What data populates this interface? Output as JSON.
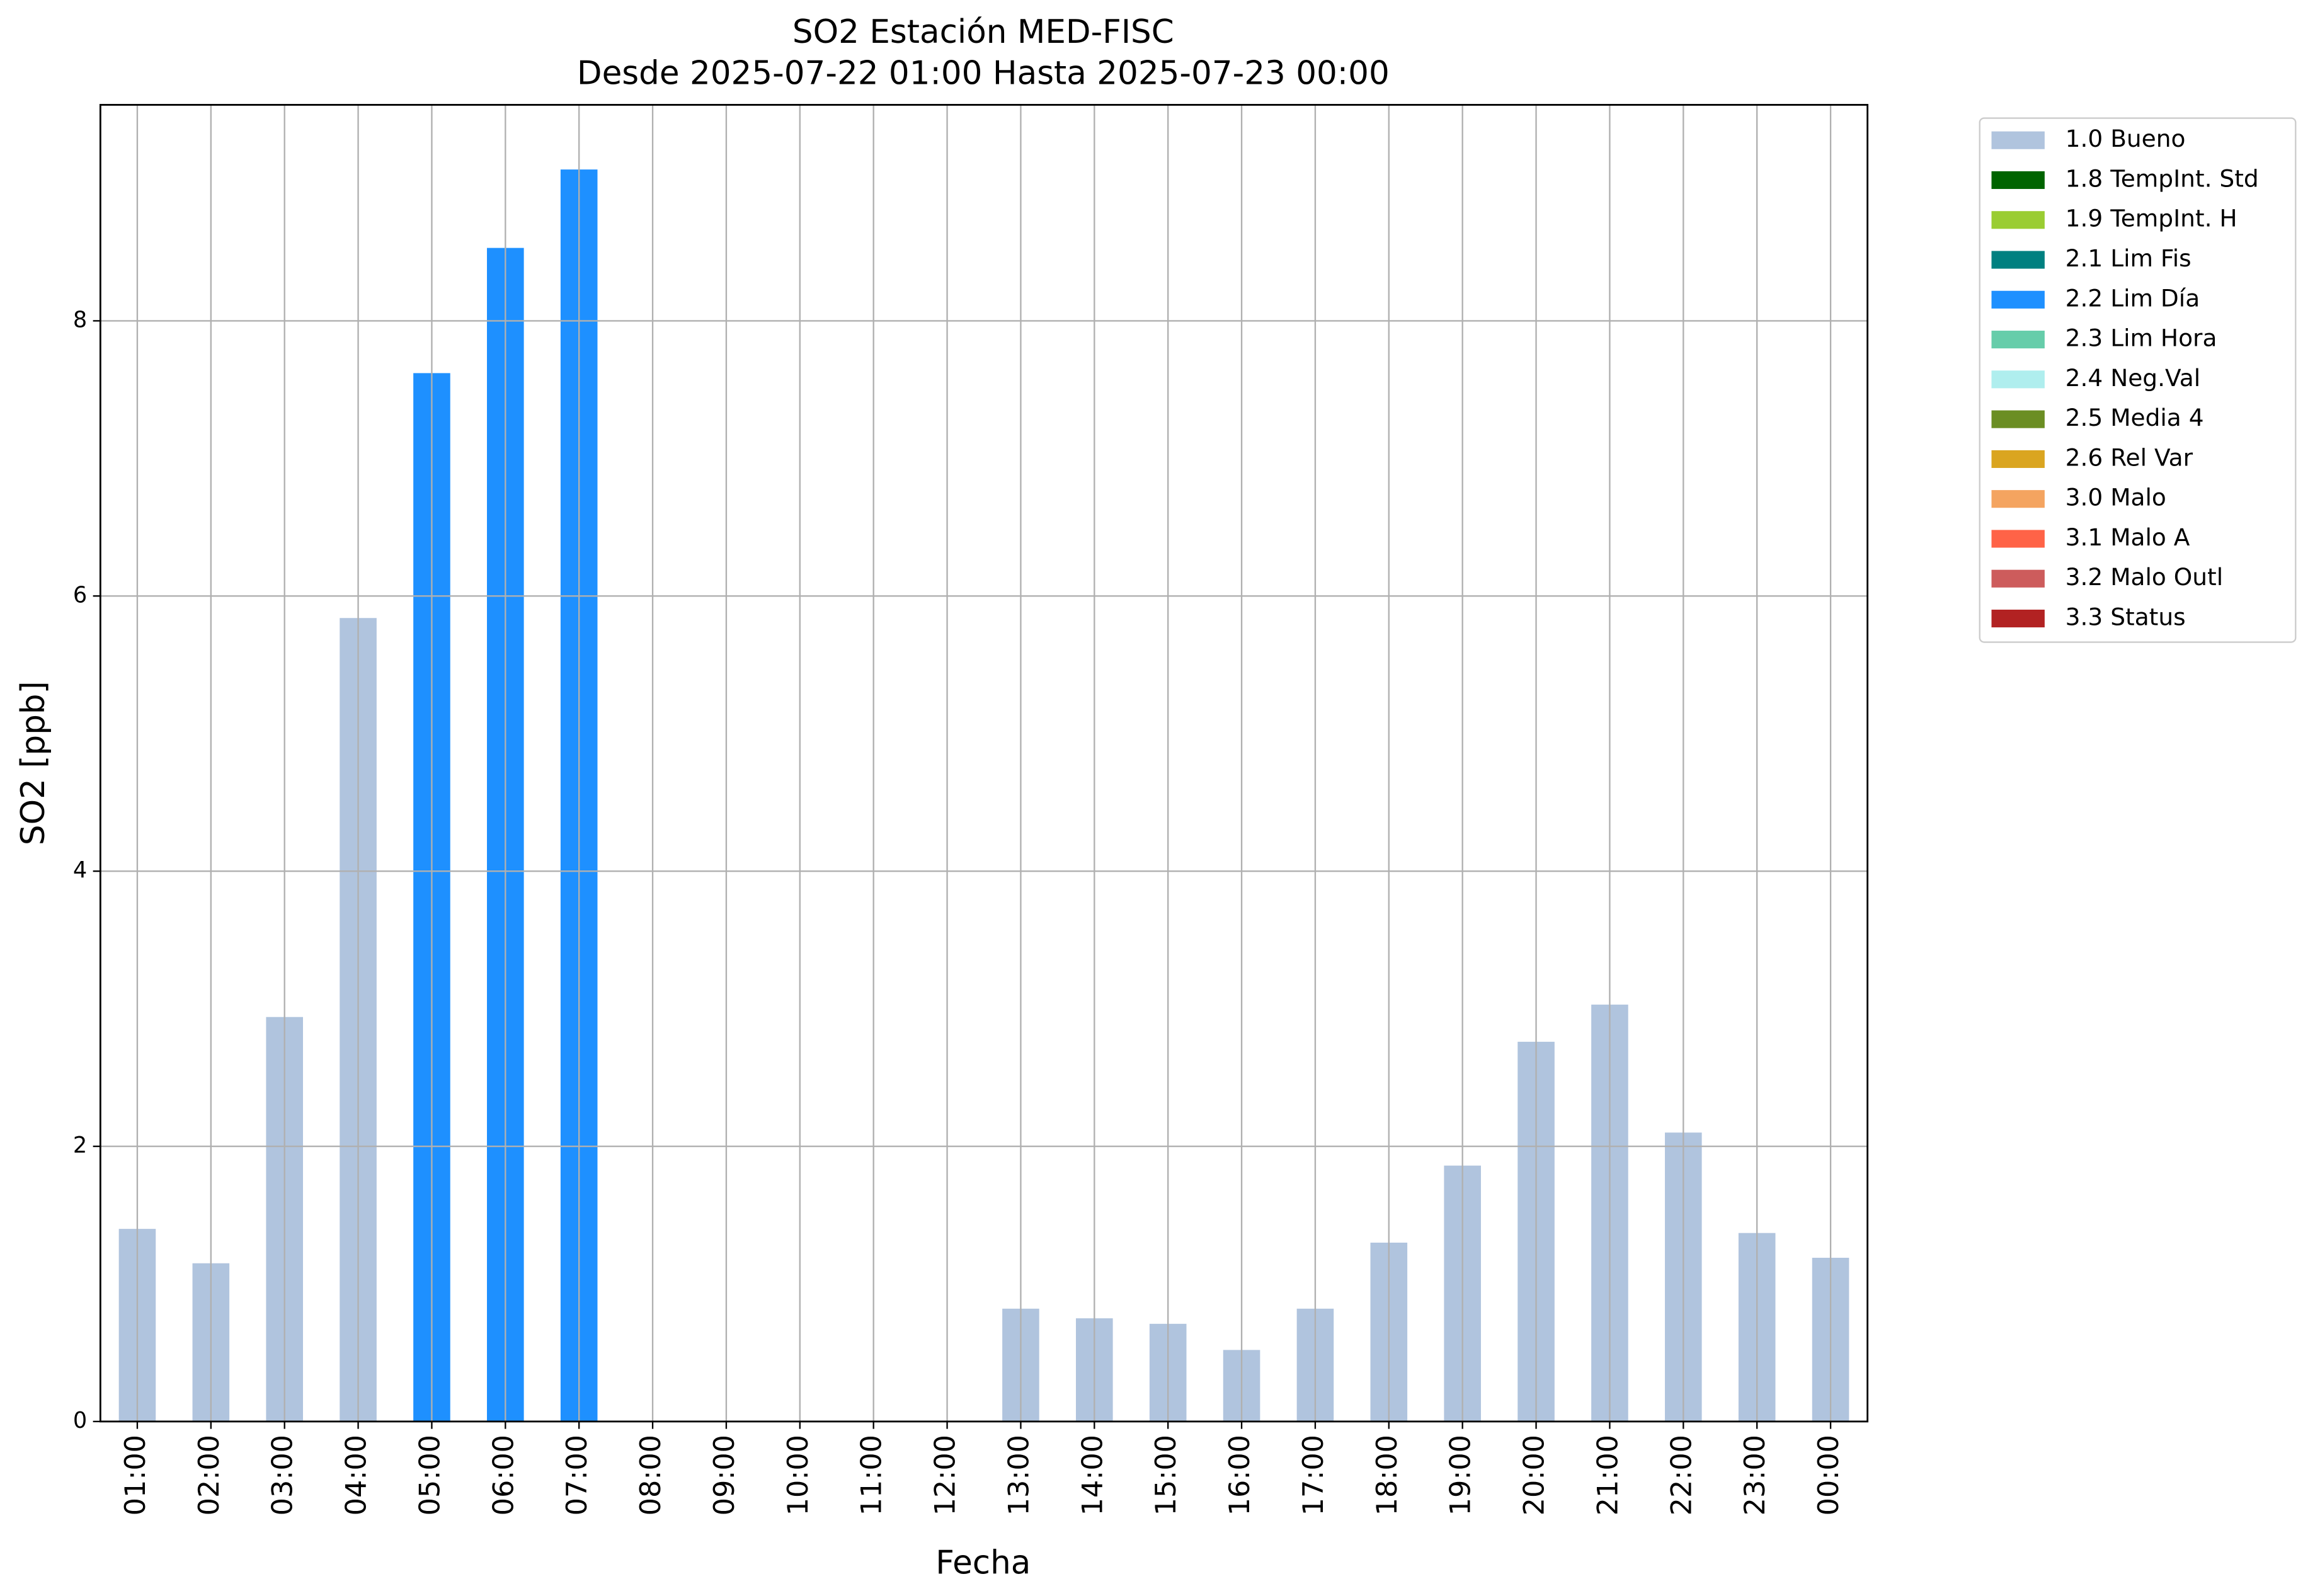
{
  "chart_data": {
    "type": "bar",
    "stacked": true,
    "title": "SO2 Estación MED-FISC",
    "subtitle": "Desde 2025-07-22 01:00 Hasta 2025-07-23 00:00",
    "x_label": "Fecha",
    "y_label": "SO2 [ppb]",
    "categories": [
      "01:00",
      "02:00",
      "03:00",
      "04:00",
      "05:00",
      "06:00",
      "07:00",
      "08:00",
      "09:00",
      "10:00",
      "11:00",
      "12:00",
      "13:00",
      "14:00",
      "15:00",
      "16:00",
      "17:00",
      "18:00",
      "19:00",
      "20:00",
      "21:00",
      "22:00",
      "23:00",
      "00:00"
    ],
    "series": [
      {
        "name": "1.0 Bueno",
        "color": "#b0c4de",
        "values": [
          1.4,
          1.15,
          2.94,
          5.84,
          null,
          null,
          null,
          null,
          null,
          null,
          null,
          null,
          0.82,
          0.75,
          0.71,
          0.52,
          0.82,
          1.3,
          1.86,
          2.76,
          3.03,
          2.1,
          1.37,
          1.19
        ]
      },
      {
        "name": "1.8 TempInt. Std",
        "color": "#006400",
        "values": [
          null,
          null,
          null,
          null,
          null,
          null,
          null,
          null,
          null,
          null,
          null,
          null,
          null,
          null,
          null,
          null,
          null,
          null,
          null,
          null,
          null,
          null,
          null,
          null
        ]
      },
      {
        "name": "1.9 TempInt. H",
        "color": "#9acd32",
        "values": [
          null,
          null,
          null,
          null,
          null,
          null,
          null,
          null,
          null,
          null,
          null,
          null,
          null,
          null,
          null,
          null,
          null,
          null,
          null,
          null,
          null,
          null,
          null,
          null
        ]
      },
      {
        "name": "2.1 Lim Fis",
        "color": "#008080",
        "values": [
          null,
          null,
          null,
          null,
          null,
          null,
          null,
          null,
          null,
          null,
          null,
          null,
          null,
          null,
          null,
          null,
          null,
          null,
          null,
          null,
          null,
          null,
          null,
          null
        ]
      },
      {
        "name": "2.2 Lim Día",
        "color": "#1e90ff",
        "values": [
          null,
          null,
          null,
          null,
          7.62,
          8.53,
          9.1,
          null,
          null,
          null,
          null,
          null,
          null,
          null,
          null,
          null,
          null,
          null,
          null,
          null,
          null,
          null,
          null,
          null
        ]
      },
      {
        "name": "2.3 Lim Hora",
        "color": "#66cdaa",
        "values": [
          null,
          null,
          null,
          null,
          null,
          null,
          null,
          null,
          null,
          null,
          null,
          null,
          null,
          null,
          null,
          null,
          null,
          null,
          null,
          null,
          null,
          null,
          null,
          null
        ]
      },
      {
        "name": "2.4 Neg.Val",
        "color": "#afeeee",
        "values": [
          null,
          null,
          null,
          null,
          null,
          null,
          null,
          null,
          null,
          null,
          null,
          null,
          null,
          null,
          null,
          null,
          null,
          null,
          null,
          null,
          null,
          null,
          null,
          null
        ]
      },
      {
        "name": "2.5 Media 4",
        "color": "#6b8e23",
        "values": [
          null,
          null,
          null,
          null,
          null,
          null,
          null,
          null,
          null,
          null,
          null,
          null,
          null,
          null,
          null,
          null,
          null,
          null,
          null,
          null,
          null,
          null,
          null,
          null
        ]
      },
      {
        "name": "2.6 Rel Var",
        "color": "#daa520",
        "values": [
          null,
          null,
          null,
          null,
          null,
          null,
          null,
          null,
          null,
          null,
          null,
          null,
          null,
          null,
          null,
          null,
          null,
          null,
          null,
          null,
          null,
          null,
          null,
          null
        ]
      },
      {
        "name": "3.0 Malo",
        "color": "#f4a460",
        "values": [
          null,
          null,
          null,
          null,
          null,
          null,
          null,
          null,
          null,
          null,
          null,
          null,
          null,
          null,
          null,
          null,
          null,
          null,
          null,
          null,
          null,
          null,
          null,
          null
        ]
      },
      {
        "name": "3.1 Malo A",
        "color": "#ff6347",
        "values": [
          null,
          null,
          null,
          null,
          null,
          null,
          null,
          null,
          null,
          null,
          null,
          null,
          null,
          null,
          null,
          null,
          null,
          null,
          null,
          null,
          null,
          null,
          null,
          null
        ]
      },
      {
        "name": "3.2 Malo Outl",
        "color": "#cd5c5c",
        "values": [
          null,
          null,
          null,
          null,
          null,
          null,
          null,
          null,
          null,
          null,
          null,
          null,
          null,
          null,
          null,
          null,
          null,
          null,
          null,
          null,
          null,
          null,
          null,
          null
        ]
      },
      {
        "name": "3.3 Status",
        "color": "#b22222",
        "values": [
          null,
          null,
          null,
          null,
          null,
          null,
          null,
          null,
          null,
          null,
          null,
          null,
          null,
          null,
          null,
          null,
          null,
          null,
          null,
          null,
          null,
          null,
          null,
          null
        ]
      }
    ],
    "ylim": [
      0,
      9.57
    ],
    "yticks": [
      0,
      2,
      4,
      6,
      8
    ],
    "grid": true,
    "legend": "outside-right"
  }
}
